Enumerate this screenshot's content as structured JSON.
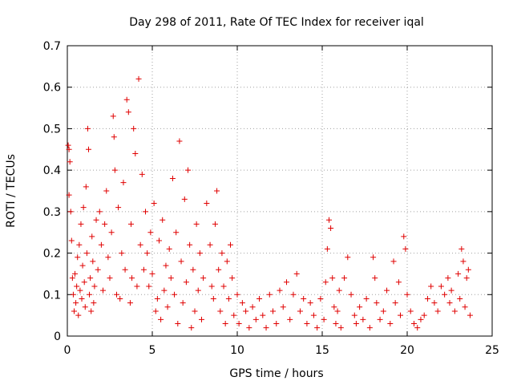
{
  "chart_data": {
    "type": "scatter",
    "title": "Day 298 of 2011, Rate Of TEC Index for receiver iqal",
    "xlabel": "GPS time / hours",
    "ylabel": "ROTI / TECUs",
    "xlim": [
      0,
      25
    ],
    "ylim": [
      0,
      0.7
    ],
    "xticks": [
      0,
      5,
      10,
      15,
      20,
      25
    ],
    "xtick_labels": [
      "0",
      "5",
      "10",
      "15",
      "20",
      "25"
    ],
    "yticks": [
      0,
      0.1,
      0.2,
      0.3,
      0.4,
      0.5,
      0.6,
      0.7
    ],
    "ytick_labels": [
      "0",
      "0.1",
      "0.2",
      "0.3",
      "0.4",
      "0.5",
      "0.6",
      "0.7"
    ],
    "grid": true,
    "marker": "+",
    "color": "#e00000",
    "series": [
      {
        "name": "ROTI",
        "points": [
          [
            0.05,
            0.46
          ],
          [
            0.1,
            0.45
          ],
          [
            0.1,
            0.34
          ],
          [
            0.15,
            0.42
          ],
          [
            0.2,
            0.3
          ],
          [
            0.25,
            0.23
          ],
          [
            0.3,
            0.14
          ],
          [
            0.35,
            0.1
          ],
          [
            0.4,
            0.06
          ],
          [
            0.45,
            0.15
          ],
          [
            0.5,
            0.08
          ],
          [
            0.55,
            0.12
          ],
          [
            0.6,
            0.19
          ],
          [
            0.65,
            0.05
          ],
          [
            0.7,
            0.22
          ],
          [
            0.75,
            0.11
          ],
          [
            0.8,
            0.27
          ],
          [
            0.85,
            0.09
          ],
          [
            0.9,
            0.17
          ],
          [
            0.95,
            0.31
          ],
          [
            1.0,
            0.13
          ],
          [
            1.05,
            0.07
          ],
          [
            1.1,
            0.36
          ],
          [
            1.15,
            0.2
          ],
          [
            1.2,
            0.5
          ],
          [
            1.25,
            0.45
          ],
          [
            1.3,
            0.1
          ],
          [
            1.35,
            0.14
          ],
          [
            1.4,
            0.06
          ],
          [
            1.45,
            0.24
          ],
          [
            1.5,
            0.18
          ],
          [
            1.55,
            0.08
          ],
          [
            1.6,
            0.12
          ],
          [
            1.7,
            0.28
          ],
          [
            1.8,
            0.16
          ],
          [
            1.9,
            0.3
          ],
          [
            2.0,
            0.22
          ],
          [
            2.1,
            0.11
          ],
          [
            2.2,
            0.27
          ],
          [
            2.3,
            0.35
          ],
          [
            2.4,
            0.19
          ],
          [
            2.5,
            0.14
          ],
          [
            2.6,
            0.25
          ],
          [
            2.7,
            0.53
          ],
          [
            2.75,
            0.48
          ],
          [
            2.8,
            0.4
          ],
          [
            2.9,
            0.1
          ],
          [
            3.0,
            0.31
          ],
          [
            3.1,
            0.09
          ],
          [
            3.2,
            0.2
          ],
          [
            3.3,
            0.37
          ],
          [
            3.4,
            0.16
          ],
          [
            3.5,
            0.57
          ],
          [
            3.6,
            0.54
          ],
          [
            3.7,
            0.08
          ],
          [
            3.75,
            0.27
          ],
          [
            3.8,
            0.14
          ],
          [
            3.9,
            0.5
          ],
          [
            4.0,
            0.44
          ],
          [
            4.1,
            0.12
          ],
          [
            4.2,
            0.62
          ],
          [
            4.3,
            0.22
          ],
          [
            4.4,
            0.39
          ],
          [
            4.5,
            0.16
          ],
          [
            4.6,
            0.3
          ],
          [
            4.7,
            0.2
          ],
          [
            4.8,
            0.12
          ],
          [
            4.9,
            0.25
          ],
          [
            5.0,
            0.15
          ],
          [
            5.1,
            0.32
          ],
          [
            5.2,
            0.06
          ],
          [
            5.3,
            0.09
          ],
          [
            5.4,
            0.23
          ],
          [
            5.5,
            0.04
          ],
          [
            5.6,
            0.28
          ],
          [
            5.7,
            0.11
          ],
          [
            5.8,
            0.17
          ],
          [
            5.9,
            0.07
          ],
          [
            6.0,
            0.21
          ],
          [
            6.1,
            0.14
          ],
          [
            6.2,
            0.38
          ],
          [
            6.3,
            0.1
          ],
          [
            6.4,
            0.25
          ],
          [
            6.5,
            0.03
          ],
          [
            6.6,
            0.47
          ],
          [
            6.7,
            0.18
          ],
          [
            6.8,
            0.08
          ],
          [
            6.9,
            0.33
          ],
          [
            7.0,
            0.13
          ],
          [
            7.1,
            0.4
          ],
          [
            7.2,
            0.22
          ],
          [
            7.3,
            0.02
          ],
          [
            7.4,
            0.16
          ],
          [
            7.5,
            0.06
          ],
          [
            7.6,
            0.27
          ],
          [
            7.7,
            0.11
          ],
          [
            7.8,
            0.2
          ],
          [
            7.9,
            0.04
          ],
          [
            8.0,
            0.14
          ],
          [
            8.2,
            0.32
          ],
          [
            8.4,
            0.22
          ],
          [
            8.5,
            0.12
          ],
          [
            8.6,
            0.09
          ],
          [
            8.7,
            0.27
          ],
          [
            8.8,
            0.35
          ],
          [
            8.9,
            0.16
          ],
          [
            9.0,
            0.06
          ],
          [
            9.1,
            0.2
          ],
          [
            9.2,
            0.12
          ],
          [
            9.3,
            0.03
          ],
          [
            9.4,
            0.18
          ],
          [
            9.5,
            0.09
          ],
          [
            9.6,
            0.22
          ],
          [
            9.7,
            0.14
          ],
          [
            9.8,
            0.05
          ],
          [
            10.0,
            0.1
          ],
          [
            10.1,
            0.03
          ],
          [
            10.3,
            0.08
          ],
          [
            10.5,
            0.06
          ],
          [
            10.7,
            0.02
          ],
          [
            10.9,
            0.07
          ],
          [
            11.1,
            0.04
          ],
          [
            11.3,
            0.09
          ],
          [
            11.5,
            0.05
          ],
          [
            11.7,
            0.02
          ],
          [
            11.9,
            0.1
          ],
          [
            12.1,
            0.06
          ],
          [
            12.3,
            0.03
          ],
          [
            12.5,
            0.11
          ],
          [
            12.7,
            0.07
          ],
          [
            12.9,
            0.13
          ],
          [
            13.1,
            0.04
          ],
          [
            13.3,
            0.1
          ],
          [
            13.5,
            0.15
          ],
          [
            13.7,
            0.06
          ],
          [
            13.9,
            0.09
          ],
          [
            14.1,
            0.03
          ],
          [
            14.3,
            0.08
          ],
          [
            14.5,
            0.05
          ],
          [
            14.7,
            0.02
          ],
          [
            14.9,
            0.09
          ],
          [
            15.1,
            0.04
          ],
          [
            15.2,
            0.13
          ],
          [
            15.3,
            0.21
          ],
          [
            15.4,
            0.28
          ],
          [
            15.5,
            0.26
          ],
          [
            15.6,
            0.14
          ],
          [
            15.7,
            0.07
          ],
          [
            15.8,
            0.03
          ],
          [
            15.9,
            0.06
          ],
          [
            16.0,
            0.11
          ],
          [
            16.1,
            0.02
          ],
          [
            16.3,
            0.14
          ],
          [
            16.5,
            0.19
          ],
          [
            16.7,
            0.1
          ],
          [
            16.9,
            0.05
          ],
          [
            17.0,
            0.03
          ],
          [
            17.2,
            0.07
          ],
          [
            17.4,
            0.04
          ],
          [
            17.6,
            0.09
          ],
          [
            17.8,
            0.02
          ],
          [
            18.0,
            0.19
          ],
          [
            18.1,
            0.14
          ],
          [
            18.2,
            0.08
          ],
          [
            18.4,
            0.04
          ],
          [
            18.6,
            0.06
          ],
          [
            18.8,
            0.11
          ],
          [
            19.0,
            0.03
          ],
          [
            19.2,
            0.18
          ],
          [
            19.3,
            0.08
          ],
          [
            19.5,
            0.13
          ],
          [
            19.6,
            0.05
          ],
          [
            19.8,
            0.24
          ],
          [
            19.9,
            0.21
          ],
          [
            20.0,
            0.1
          ],
          [
            20.2,
            0.06
          ],
          [
            20.4,
            0.03
          ],
          [
            20.6,
            0.02
          ],
          [
            20.8,
            0.04
          ],
          [
            21.0,
            0.05
          ],
          [
            21.2,
            0.09
          ],
          [
            21.4,
            0.12
          ],
          [
            21.6,
            0.08
          ],
          [
            21.8,
            0.06
          ],
          [
            22.0,
            0.12
          ],
          [
            22.2,
            0.1
          ],
          [
            22.4,
            0.14
          ],
          [
            22.5,
            0.08
          ],
          [
            22.6,
            0.11
          ],
          [
            22.8,
            0.06
          ],
          [
            23.0,
            0.15
          ],
          [
            23.1,
            0.09
          ],
          [
            23.2,
            0.21
          ],
          [
            23.3,
            0.18
          ],
          [
            23.4,
            0.07
          ],
          [
            23.5,
            0.14
          ],
          [
            23.6,
            0.16
          ],
          [
            23.7,
            0.05
          ]
        ]
      }
    ]
  }
}
